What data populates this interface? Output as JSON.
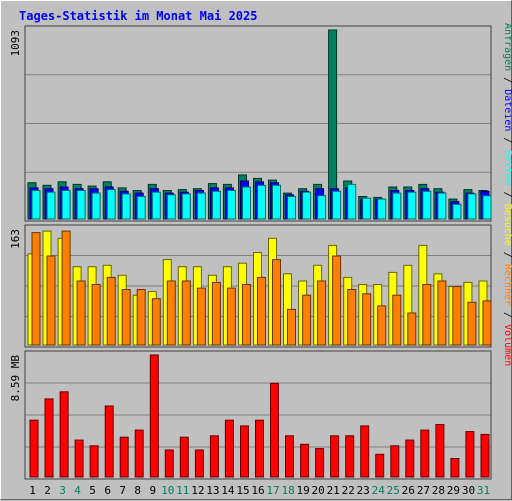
{
  "title": "Tages-Statistik im Monat Mai 2025",
  "chart_data": [
    {
      "type": "bar",
      "panel": "top",
      "categories": [
        "1",
        "2",
        "3",
        "4",
        "5",
        "6",
        "7",
        "8",
        "9",
        "10",
        "11",
        "12",
        "13",
        "14",
        "15",
        "16",
        "17",
        "18",
        "19",
        "20",
        "21",
        "22",
        "23",
        "24",
        "25",
        "26",
        "27",
        "28",
        "29",
        "30",
        "31"
      ],
      "max_label": "1093",
      "ylim": [
        0,
        1093
      ],
      "series": [
        {
          "name": "Anfragen",
          "color": "#008060",
          "values": [
            210,
            195,
            215,
            200,
            190,
            215,
            180,
            165,
            200,
            165,
            170,
            175,
            205,
            200,
            255,
            235,
            225,
            150,
            175,
            200,
            1093,
            220,
            130,
            125,
            185,
            185,
            200,
            175,
            115,
            170,
            165
          ]
        },
        {
          "name": "Dateien",
          "color": "#0000ff",
          "values": [
            180,
            175,
            185,
            175,
            175,
            185,
            160,
            150,
            175,
            150,
            155,
            165,
            180,
            180,
            220,
            215,
            210,
            140,
            160,
            175,
            175,
            180,
            115,
            115,
            165,
            165,
            175,
            155,
            100,
            150,
            160
          ]
        },
        {
          "name": "Seiten",
          "color": "#00ffff",
          "values": [
            165,
            155,
            165,
            165,
            150,
            170,
            145,
            130,
            155,
            140,
            145,
            150,
            160,
            165,
            185,
            195,
            195,
            130,
            155,
            135,
            160,
            200,
            120,
            115,
            150,
            155,
            160,
            150,
            85,
            145,
            135
          ]
        }
      ]
    },
    {
      "type": "bar",
      "panel": "middle",
      "categories": [
        "1",
        "2",
        "3",
        "4",
        "5",
        "6",
        "7",
        "8",
        "9",
        "10",
        "11",
        "12",
        "13",
        "14",
        "15",
        "16",
        "17",
        "18",
        "19",
        "20",
        "21",
        "22",
        "23",
        "24",
        "25",
        "26",
        "27",
        "28",
        "29",
        "30",
        "31"
      ],
      "max_label": "163",
      "ylim": [
        0,
        163
      ],
      "series": [
        {
          "name": "Besuche",
          "color": "#ffff00",
          "values": [
            128,
            160,
            150,
            110,
            110,
            112,
            98,
            70,
            75,
            120,
            110,
            110,
            98,
            110,
            115,
            130,
            150,
            100,
            90,
            112,
            140,
            95,
            85,
            85,
            102,
            112,
            140,
            100,
            82,
            88,
            90
          ]
        },
        {
          "name": "Rechner",
          "color": "#ff8000",
          "values": [
            158,
            125,
            160,
            90,
            85,
            95,
            78,
            78,
            65,
            90,
            90,
            80,
            88,
            80,
            85,
            95,
            120,
            50,
            70,
            90,
            125,
            78,
            72,
            55,
            70,
            45,
            85,
            90,
            82,
            60,
            62
          ]
        }
      ]
    },
    {
      "type": "bar",
      "panel": "bottom",
      "categories": [
        "1",
        "2",
        "3",
        "4",
        "5",
        "6",
        "7",
        "8",
        "9",
        "10",
        "11",
        "12",
        "13",
        "14",
        "15",
        "16",
        "17",
        "18",
        "19",
        "20",
        "21",
        "22",
        "23",
        "24",
        "25",
        "26",
        "27",
        "28",
        "29",
        "30",
        "31"
      ],
      "max_label": "8.59 MB",
      "ylim": [
        0,
        8.59
      ],
      "series": [
        {
          "name": "Volumen",
          "color": "#ff0000",
          "values": [
            4.0,
            5.5,
            6.0,
            2.6,
            2.2,
            5.0,
            2.8,
            3.3,
            8.59,
            1.9,
            2.8,
            1.9,
            2.9,
            4.0,
            3.6,
            4.0,
            6.6,
            2.9,
            2.3,
            2.0,
            2.9,
            2.9,
            3.6,
            1.6,
            2.2,
            2.6,
            3.3,
            3.7,
            1.3,
            3.2,
            3.0
          ]
        }
      ]
    }
  ],
  "day_label_colors": {
    "weekday": "#000000",
    "weekend": "#008060"
  },
  "weekend_days": [
    "3",
    "4",
    "10",
    "11",
    "17",
    "18",
    "24",
    "25",
    "31"
  ]
}
